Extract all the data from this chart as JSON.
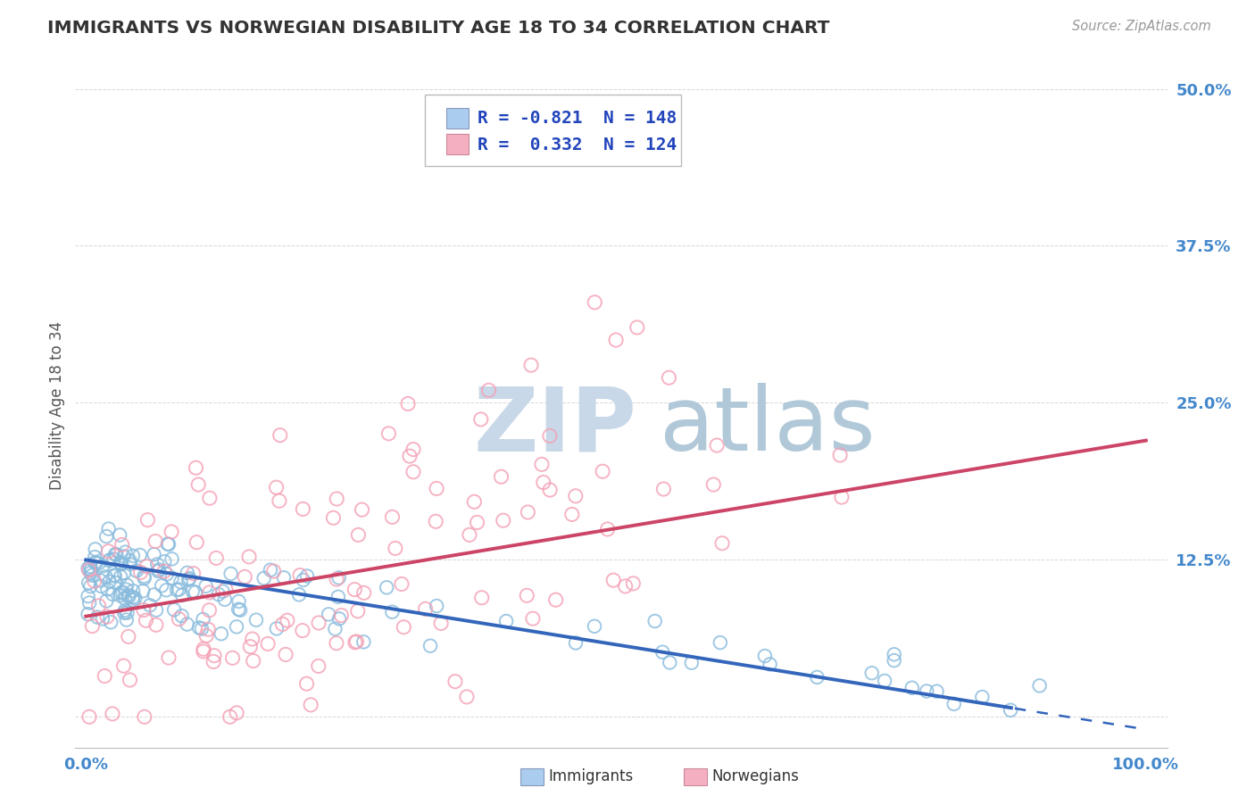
{
  "title": "IMMIGRANTS VS NORWEGIAN DISABILITY AGE 18 TO 34 CORRELATION CHART",
  "source_text": "Source: ZipAtlas.com",
  "ylabel": "Disability Age 18 to 34",
  "xlim": [
    -0.01,
    1.02
  ],
  "ylim": [
    -0.025,
    0.52
  ],
  "yticks": [
    0.0,
    0.125,
    0.25,
    0.375,
    0.5
  ],
  "ytick_labels": [
    "",
    "12.5%",
    "25.0%",
    "37.5%",
    "50.0%"
  ],
  "xtick_labels": [
    "0.0%",
    "100.0%"
  ],
  "blue_R": -0.821,
  "blue_N": 148,
  "pink_R": 0.332,
  "pink_N": 124,
  "blue_scatter_color": "#88bbdd",
  "pink_scatter_color": "#f4a0b5",
  "blue_line_color": "#3366bb",
  "pink_line_color": "#cc4466",
  "bg_color": "#ffffff",
  "grid_color": "#cccccc",
  "watermark_zip_color": "#c8d8e8",
  "watermark_atlas_color": "#b0c8d8",
  "title_color": "#333333",
  "axis_label_color": "#555555",
  "tick_label_color": "#4488cc",
  "legend_color": "#2244bb",
  "legend_n_color": "#cc2222"
}
